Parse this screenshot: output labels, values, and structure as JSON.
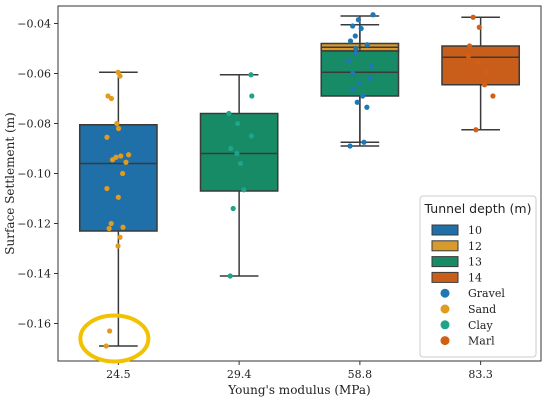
{
  "chart_data": {
    "type": "box",
    "xlabel": "Young's modulus (MPa)",
    "ylabel": "Surface Settlement (m)",
    "categories": [
      "24.5",
      "29.4",
      "58.8",
      "83.3"
    ],
    "ylim": [
      -0.175,
      -0.033
    ],
    "yticks": [
      "-0.04",
      "-0.06",
      "-0.08",
      "-0.10",
      "-0.12",
      "-0.14",
      "-0.16"
    ],
    "ytick_values": [
      -0.04,
      -0.06,
      -0.08,
      -0.1,
      -0.12,
      -0.14,
      -0.16
    ],
    "legend": {
      "title": "Tunnel depth (m)",
      "placement": "lower-right",
      "box_entries": [
        {
          "label": "10",
          "color": "#1f6fa8"
        },
        {
          "label": "12",
          "color": "#d69a2d"
        },
        {
          "label": "13",
          "color": "#178a66"
        },
        {
          "label": "14",
          "color": "#c95e1b"
        }
      ],
      "point_entries": [
        {
          "label": "Gravel",
          "color": "#1f77b4"
        },
        {
          "label": "Sand",
          "color": "#e19b1f"
        },
        {
          "label": "Clay",
          "color": "#1fa38a"
        },
        {
          "label": "Marl",
          "color": "#d35f14"
        }
      ]
    },
    "boxes": [
      {
        "category": "24.5",
        "depth": "10",
        "color": "#1f6fa8",
        "min": -0.169,
        "q1": -0.123,
        "median": -0.096,
        "q3": -0.0805,
        "max": -0.0595
      },
      {
        "category": "29.4",
        "depth": "13",
        "color": "#178a66",
        "min": -0.141,
        "q1": -0.107,
        "median": -0.092,
        "q3": -0.076,
        "max": -0.0605
      },
      {
        "category": "58.8",
        "depth": "12",
        "color": "#d69a2d",
        "min": -0.089,
        "q1": -0.051,
        "median": -0.0495,
        "q3": -0.048,
        "max": -0.037
      },
      {
        "category": "58.8",
        "depth": "13",
        "color": "#178a66",
        "min": -0.0875,
        "q1": -0.069,
        "median": -0.0595,
        "q3": -0.051,
        "max": -0.0405
      },
      {
        "category": "83.3",
        "depth": "14",
        "color": "#c95e1b",
        "min": -0.0825,
        "q1": -0.0645,
        "median": -0.0535,
        "q3": -0.049,
        "max": -0.0375
      }
    ],
    "points": [
      {
        "category": "24.5",
        "soil": "Sand",
        "values": [
          -0.0595,
          -0.061,
          -0.069,
          -0.07,
          -0.08,
          -0.082,
          -0.0855,
          -0.0925,
          -0.093,
          -0.0935,
          -0.0945,
          -0.0955,
          -0.1,
          -0.106,
          -0.1095,
          -0.12,
          -0.1215,
          -0.122,
          -0.1255,
          -0.129,
          -0.163,
          -0.169
        ]
      },
      {
        "category": "29.4",
        "soil": "Clay",
        "values": [
          -0.0605,
          -0.069,
          -0.076,
          -0.08,
          -0.085,
          -0.09,
          -0.092,
          -0.096,
          -0.1065,
          -0.114,
          -0.141
        ]
      },
      {
        "category": "58.8",
        "soil": "Gravel",
        "values": [
          -0.0365,
          -0.0385,
          -0.041,
          -0.042,
          -0.045,
          -0.047,
          -0.0485,
          -0.05,
          -0.052,
          -0.055,
          -0.057,
          -0.06,
          -0.062,
          -0.064,
          -0.0665,
          -0.069,
          -0.0715,
          -0.0735,
          -0.0875,
          -0.089
        ]
      },
      {
        "category": "83.3",
        "soil": "Marl",
        "values": [
          -0.0375,
          -0.0415,
          -0.049,
          -0.053,
          -0.0555,
          -0.0595,
          -0.0645,
          -0.069,
          -0.0825
        ]
      }
    ],
    "annotations": [
      {
        "type": "ellipse",
        "category": "24.5",
        "y_center": -0.166,
        "color": "#f2c100"
      }
    ]
  }
}
